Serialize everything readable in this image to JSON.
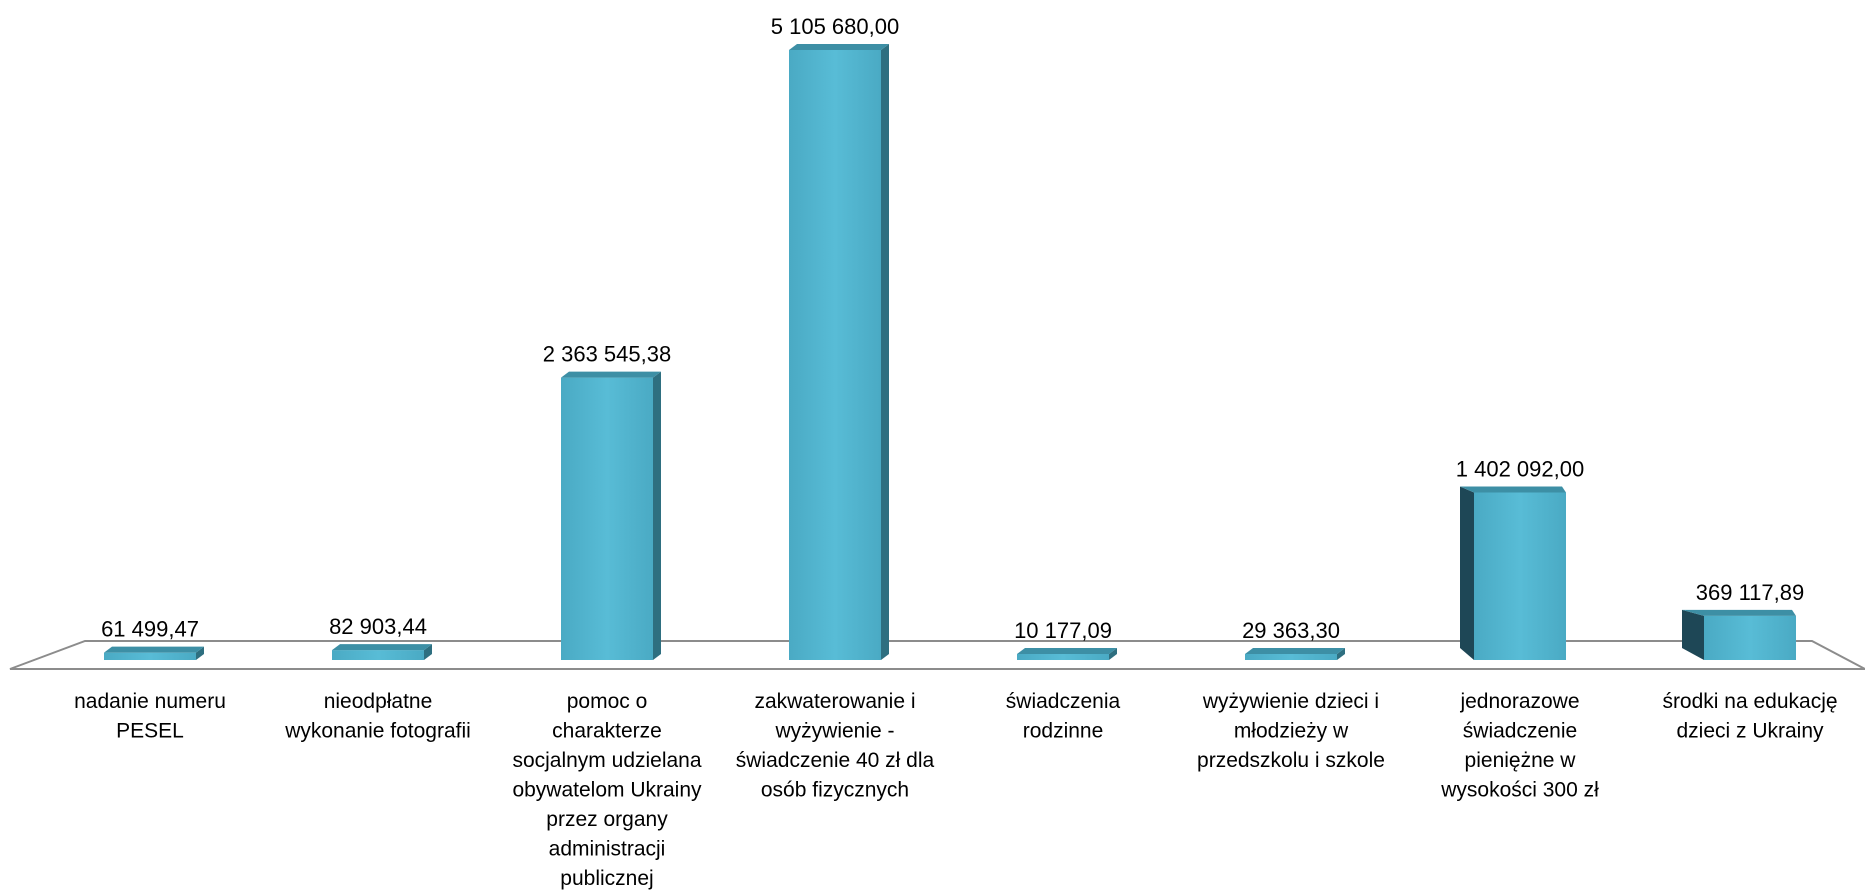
{
  "chart_data": {
    "type": "bar",
    "style": "3d-column",
    "title": "",
    "xlabel": "",
    "ylabel": "",
    "ylim": [
      0,
      5105680
    ],
    "grid": false,
    "legend": "none",
    "categories": [
      "nadanie numeru PESEL",
      "nieodpłatne wykonanie fotografii",
      "pomoc o charakterze socjalnym udzielana obywatelom Ukrainy przez organy administracji publicznej",
      "zakwaterowanie i wyżywienie - świadczenie 40 zł dla osób fizycznych",
      "świadczenia rodzinne",
      "wyżywienie dzieci i młodzieży w przedszkolu i szkole",
      "jednorazowe świadczenie pieniężne w wysokości 300 zł",
      "środki na edukację dzieci z Ukrainy"
    ],
    "category_lines": [
      [
        "nadanie numeru",
        "PESEL"
      ],
      [
        "nieodpłatne",
        "wykonanie fotografii"
      ],
      [
        "pomoc o",
        "charakterze",
        "socjalnym udzielana",
        "obywatelom Ukrainy",
        "przez organy",
        "administracji",
        "publicznej"
      ],
      [
        "zakwaterowanie i",
        "wyżywienie -",
        "świadczenie 40 zł dla",
        "osób fizycznych"
      ],
      [
        "świadczenia",
        "rodzinne"
      ],
      [
        "wyżywienie dzieci i",
        "młodzieży w",
        "przedszkolu i szkole"
      ],
      [
        "jednorazowe",
        "świadczenie",
        "pieniężne w",
        "wysokości 300 zł"
      ],
      [
        "środki na edukację",
        "dzieci z Ukrainy"
      ]
    ],
    "values": [
      61499.47,
      82903.44,
      2363545.38,
      5105680.0,
      10177.09,
      29363.3,
      1402092.0,
      369117.89
    ],
    "value_labels": [
      "61 499,47",
      "82 903,44",
      "2 363 545,38",
      "5 105 680,00",
      "10 177,09",
      "29 363,30",
      "1 402 092,00",
      "369 117,89"
    ],
    "colors": {
      "front": "#4bacc6",
      "top": "#3d8fa5",
      "side": "#2e6f80",
      "side_dark": "#1e4756",
      "floor": "#8c8c8c"
    }
  }
}
